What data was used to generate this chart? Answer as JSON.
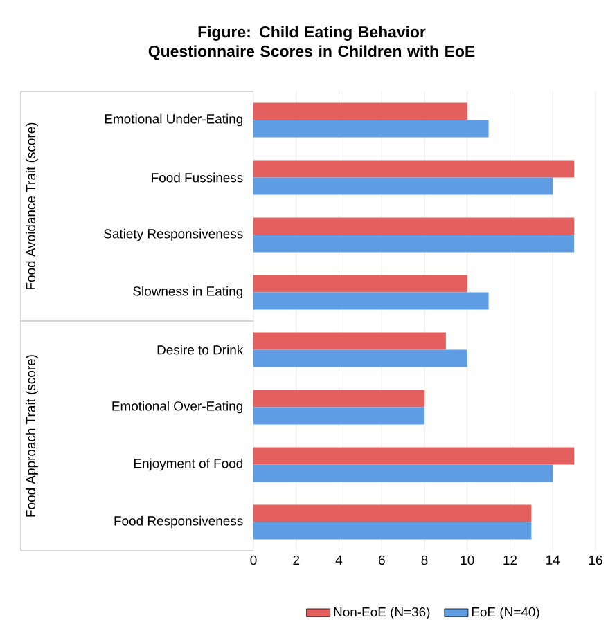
{
  "chart_data": {
    "type": "bar",
    "orientation": "horizontal",
    "title": "Figure: Child Eating Behavior Questionnaire Scores in Children with EoE",
    "categories": [
      "Emotional Under-Eating",
      "Food Fussiness",
      "Satiety Responsiveness",
      "Slowness in Eating",
      "Desire to Drink",
      "Emotional Over-Eating",
      "Enjoyment of Food",
      "Food Responsiveness"
    ],
    "series": [
      {
        "name": "Non-EoE (N=36)",
        "color": "#e4605e",
        "values": [
          10,
          15,
          15,
          10,
          9,
          8,
          15,
          13
        ]
      },
      {
        "name": "EoE (N=40)",
        "color": "#5e9de3",
        "values": [
          11,
          14,
          15,
          11,
          10,
          8,
          14,
          13
        ]
      }
    ],
    "xlim": [
      0,
      16
    ],
    "xticks": [
      0,
      2,
      4,
      6,
      8,
      10,
      12,
      14,
      16
    ],
    "annotations": [
      "Food Avoidance Trait (score)",
      "Food Approach Trait (score)"
    ],
    "grid": "x",
    "legend": "bottom"
  }
}
